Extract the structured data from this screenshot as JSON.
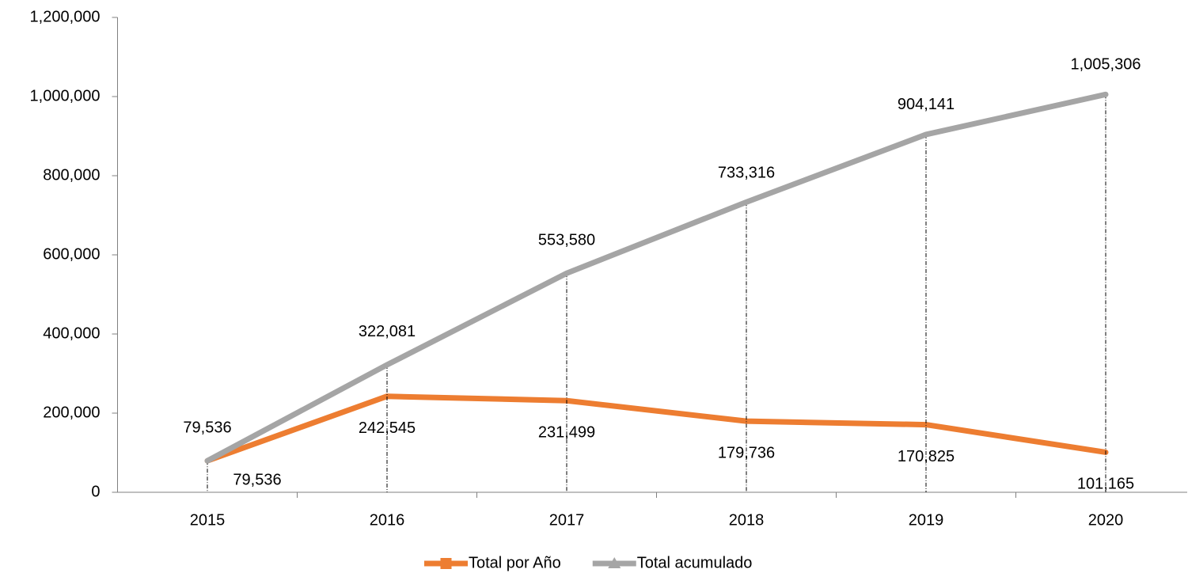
{
  "chart_data": {
    "type": "line",
    "categories": [
      "2015",
      "2016",
      "2017",
      "2018",
      "2019",
      "2020"
    ],
    "series": [
      {
        "name": "Total por Año",
        "color": "#ed7d31",
        "marker": "square",
        "values": [
          79536,
          242545,
          231499,
          179736,
          170825,
          101165
        ],
        "value_labels": [
          "79,536",
          "242,545",
          "231,499",
          "179,736",
          "170,825",
          "101,165"
        ]
      },
      {
        "name": "Total acumulado",
        "color": "#a5a5a5",
        "marker": "triangle",
        "values": [
          79536,
          322081,
          553580,
          733316,
          904141,
          1005306
        ],
        "value_labels": [
          "79,536",
          "322,081",
          "553,580",
          "733,316",
          "904,141",
          "1,005,306"
        ]
      }
    ],
    "ylim": [
      0,
      1200000
    ],
    "yticks": [
      0,
      {
        "value": 200000,
        "label": "200,000"
      },
      {
        "value": 400000,
        "label": "400,000"
      },
      {
        "value": 600000,
        "label": "600,000"
      },
      {
        "value": 800000,
        "label": "800,000"
      },
      {
        "value": 1000000,
        "label": "1,000,000"
      },
      {
        "value": 1200000,
        "label": "1,200,000"
      }
    ],
    "grid": false,
    "drop_lines": true,
    "legend": "bottom"
  }
}
